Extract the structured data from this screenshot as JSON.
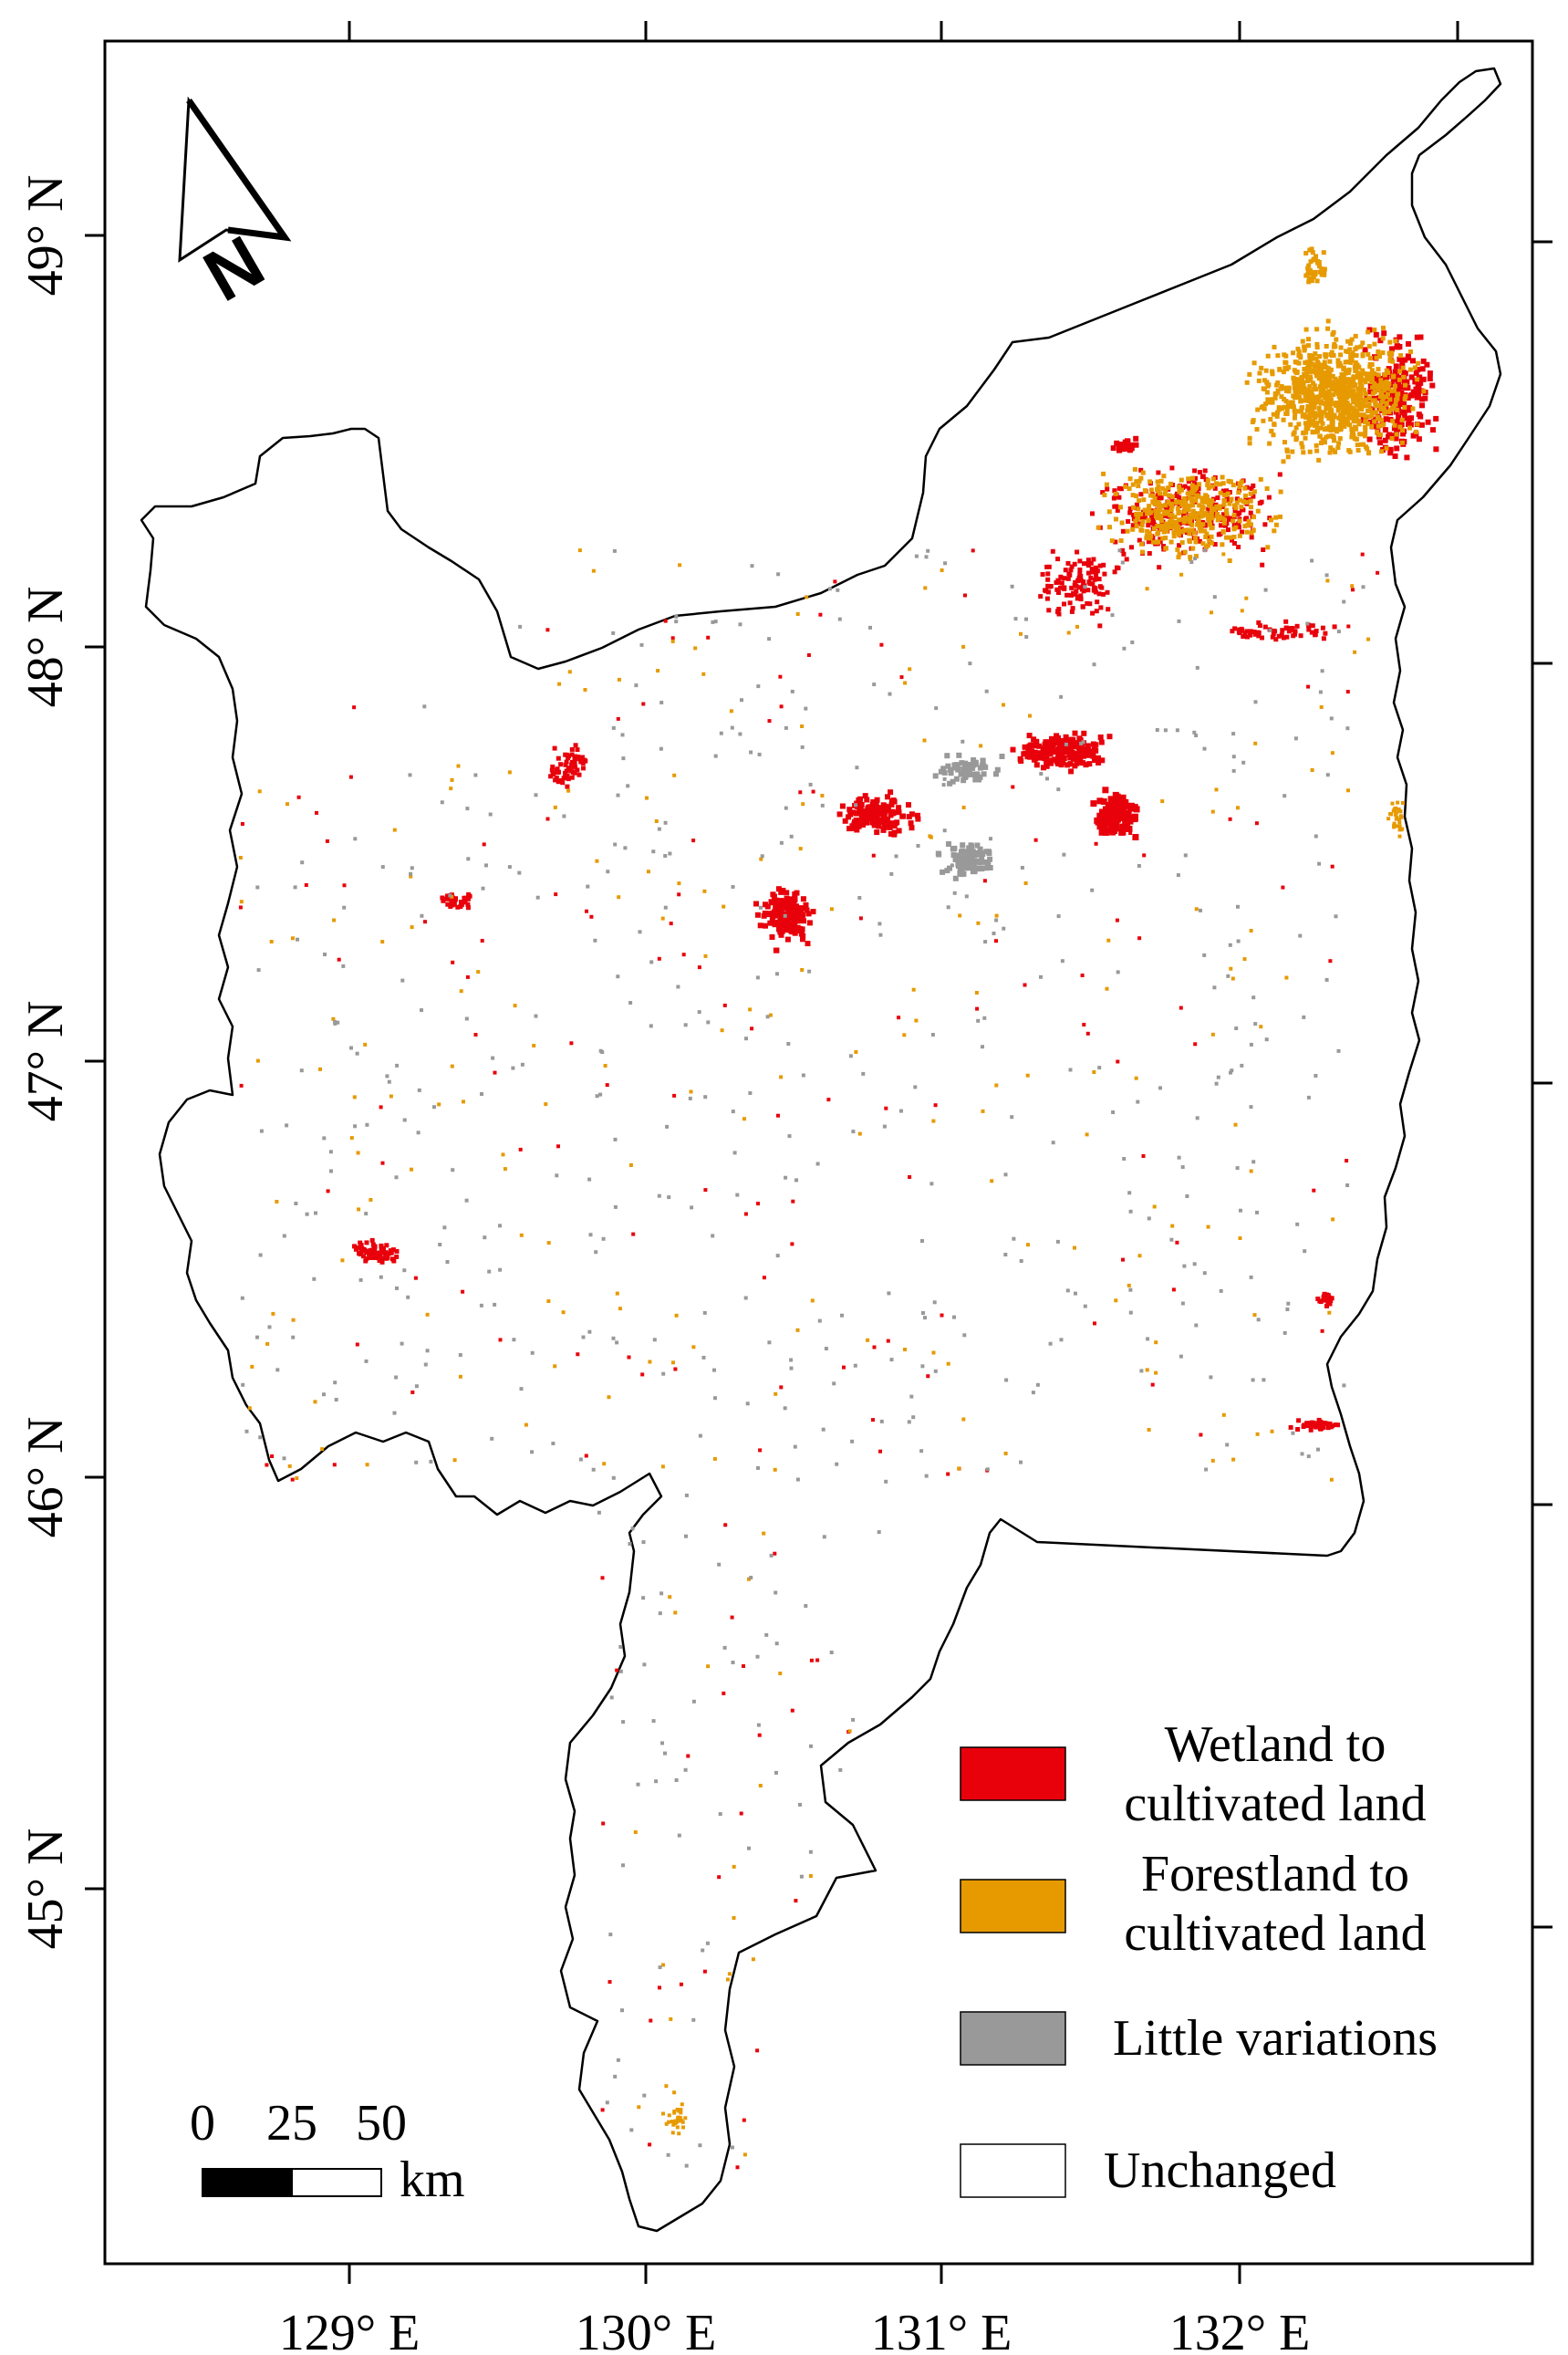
{
  "map": {
    "longitude_labels": [
      "129° E",
      "130° E",
      "131° E",
      "132° E"
    ],
    "latitude_labels": [
      "49° N",
      "48° N",
      "47° N",
      "46° N",
      "45° N"
    ]
  },
  "north_arrow": {
    "label": "N"
  },
  "scale_bar": {
    "ticks": [
      "0",
      "25",
      "50"
    ],
    "unit": "km"
  },
  "legend": {
    "items": [
      {
        "lines": [
          "Wetland to",
          "cultivated land"
        ],
        "color": "#e8000b"
      },
      {
        "lines": [
          "Forestland to",
          "cultivated land"
        ],
        "color": "#e69a00"
      },
      {
        "lines": [
          "Little variations"
        ],
        "color": "#999999"
      },
      {
        "lines": [
          "Unchanged"
        ],
        "color": "#ffffff"
      }
    ]
  },
  "colors": {
    "wetland_to_cultivated": "#e8000b",
    "forest_to_cultivated": "#e69a00",
    "little_variations": "#999999",
    "unchanged": "#ffffff"
  }
}
